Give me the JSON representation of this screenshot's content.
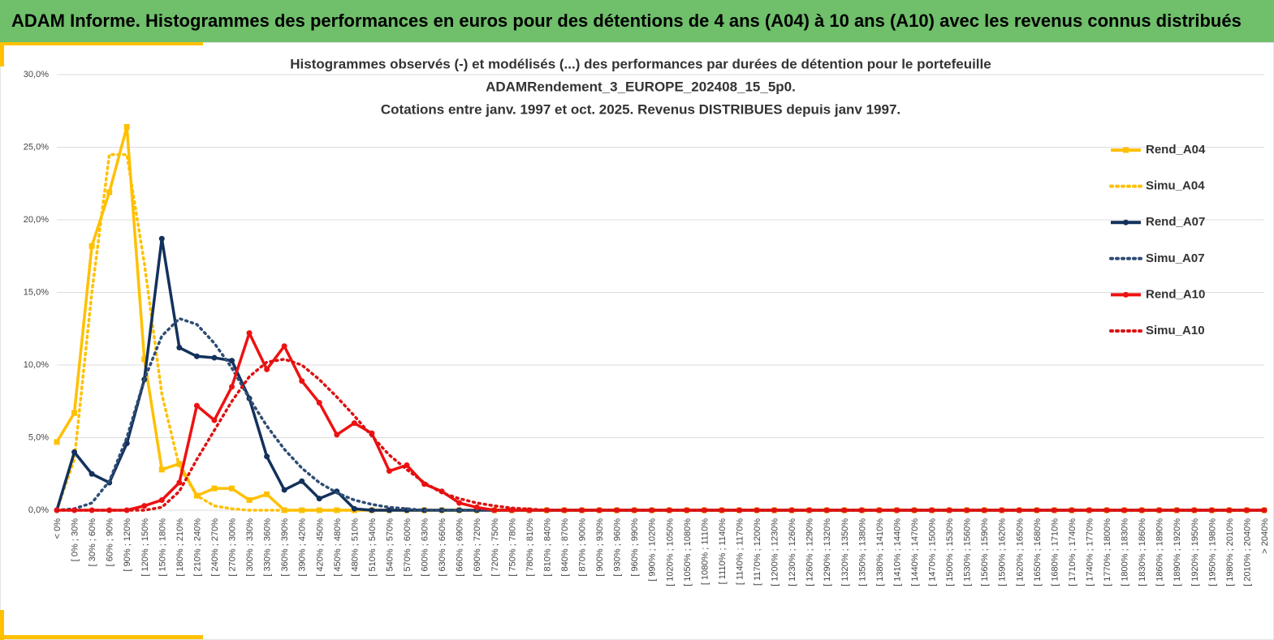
{
  "header": "ADAM Informe. Histogrammes des performances en euros pour des détentions de 4 ans (A04) à 10 ans (A10) avec les revenus connus distribués",
  "chart_data": {
    "type": "line",
    "title": [
      "Histogrammes observés (-) et modélisés (...) des performances par durées de détention pour le portefeuille",
      "ADAMRendement_3_EUROPE_202408_15_5p0.",
      "Cotations entre janv. 1997 et oct. 2025. Revenus DISTRIBUES depuis janv 1997."
    ],
    "categories": [
      "< 0%",
      "[ 0% ; 30%",
      "[ 30% ; 60%",
      "[ 60% ; 90%",
      "[ 90% ; 120%",
      "[ 120% ; 150%",
      "[ 150% ; 180%",
      "[ 180% ; 210%",
      "[ 210% ; 240%",
      "[ 240% ; 270%",
      "[ 270% ; 300%",
      "[ 300% ; 330%",
      "[ 330% ; 360%",
      "[ 360% ; 390%",
      "[ 390% ; 420%",
      "[ 420% ; 450%",
      "[ 450% ; 480%",
      "[ 480% ; 510%",
      "[ 510% ; 540%",
      "[ 540% ; 570%",
      "[ 570% ; 600%",
      "[ 600% ; 630%",
      "[ 630% ; 660%",
      "[ 660% ; 690%",
      "[ 690% ; 720%",
      "[ 720% ; 750%",
      "[ 750% ; 780%",
      "[ 780% ; 810%",
      "[ 810% ; 840%",
      "[ 840% ; 870%",
      "[ 870% ; 900%",
      "[ 900% ; 930%",
      "[ 930% ; 960%",
      "[ 960% ; 990%",
      "[ 990% ; 1020%",
      "[ 1020% ; 1050%",
      "[ 1050% ; 1080%",
      "[ 1080% ; 1110%",
      "[ 1110% ; 1140%",
      "[ 1140% ; 1170%",
      "[ 1170% ; 1200%",
      "[ 1200% ; 1230%",
      "[ 1230% ; 1260%",
      "[ 1260% ; 1290%",
      "[ 1290% ; 1320%",
      "[ 1320% ; 1350%",
      "[ 1350% ; 1380%",
      "[ 1380% ; 1410%",
      "[ 1410% ; 1440%",
      "[ 1440% ; 1470%",
      "[ 1470% ; 1500%",
      "[ 1500% ; 1530%",
      "[ 1530% ; 1560%",
      "[ 1560% ; 1590%",
      "[ 1590% ; 1620%",
      "[ 1620% ; 1650%",
      "[ 1650% ; 1680%",
      "[ 1680% ; 1710%",
      "[ 1710% ; 1740%",
      "[ 1740% ; 1770%",
      "[ 1770% ; 1800%",
      "[ 1800% ; 1830%",
      "[ 1830% ; 1860%",
      "[ 1860% ; 1890%",
      "[ 1890% ; 1920%",
      "[ 1920% ; 1950%",
      "[ 1950% ; 1980%",
      "[ 1980% ; 2010%",
      "[ 2010% ; 2040%",
      "> 2040%"
    ],
    "series": [
      {
        "name": "Rend_A04",
        "color": "#ffc000",
        "style": "solid",
        "marker": "square",
        "values": [
          4.7,
          6.7,
          18.2,
          21.9,
          26.4,
          10.4,
          2.8,
          3.2,
          1.0,
          1.5,
          1.5,
          0.7,
          1.1,
          0,
          0,
          0,
          0,
          0,
          0,
          0,
          0,
          0,
          0,
          0,
          0,
          0,
          0,
          0,
          0,
          0,
          0,
          0,
          0,
          0,
          0,
          0,
          0,
          0,
          0,
          0,
          0,
          0,
          0,
          0,
          0,
          0,
          0,
          0,
          0,
          0,
          0,
          0,
          0,
          0,
          0,
          0,
          0,
          0,
          0,
          0,
          0,
          0,
          0,
          0,
          0,
          0,
          0,
          0,
          0,
          0
        ]
      },
      {
        "name": "Simu_A04",
        "color": "#ffc000",
        "style": "dotted",
        "values": [
          0,
          3.5,
          15,
          24.5,
          24.5,
          17,
          8,
          3,
          1,
          0.3,
          0.1,
          0,
          0,
          0,
          0,
          0,
          0,
          0,
          0,
          0,
          0,
          0,
          0,
          0,
          0,
          0,
          0,
          0,
          0,
          0,
          0,
          0,
          0,
          0,
          0,
          0,
          0,
          0,
          0,
          0,
          0,
          0,
          0,
          0,
          0,
          0,
          0,
          0,
          0,
          0,
          0,
          0,
          0,
          0,
          0,
          0,
          0,
          0,
          0,
          0,
          0,
          0,
          0,
          0,
          0,
          0,
          0,
          0,
          0,
          0
        ]
      },
      {
        "name": "Rend_A07",
        "color": "#13315c",
        "style": "solid",
        "marker": "circle",
        "values": [
          0,
          4.0,
          2.5,
          1.9,
          4.6,
          9.0,
          18.7,
          11.2,
          10.6,
          10.5,
          10.3,
          7.7,
          3.7,
          1.4,
          2.0,
          0.8,
          1.3,
          0.1,
          0,
          0,
          0,
          0,
          0,
          0,
          0,
          0,
          0,
          0,
          0,
          0,
          0,
          0,
          0,
          0,
          0,
          0,
          0,
          0,
          0,
          0,
          0,
          0,
          0,
          0,
          0,
          0,
          0,
          0,
          0,
          0,
          0,
          0,
          0,
          0,
          0,
          0,
          0,
          0,
          0,
          0,
          0,
          0,
          0,
          0,
          0,
          0,
          0,
          0,
          0,
          0
        ]
      },
      {
        "name": "Simu_A07",
        "color": "#2e4d75",
        "style": "dotted",
        "values": [
          0,
          0.1,
          0.5,
          2,
          5,
          9,
          12,
          13.2,
          12.8,
          11.5,
          9.8,
          7.7,
          5.8,
          4.2,
          2.9,
          1.9,
          1.2,
          0.7,
          0.4,
          0.2,
          0.1,
          0,
          0,
          0,
          0,
          0,
          0,
          0,
          0,
          0,
          0,
          0,
          0,
          0,
          0,
          0,
          0,
          0,
          0,
          0,
          0,
          0,
          0,
          0,
          0,
          0,
          0,
          0,
          0,
          0,
          0,
          0,
          0,
          0,
          0,
          0,
          0,
          0,
          0,
          0,
          0,
          0,
          0,
          0,
          0,
          0,
          0,
          0,
          0,
          0
        ]
      },
      {
        "name": "Rend_A10",
        "color": "#ee1111",
        "style": "solid",
        "marker": "circle",
        "values": [
          0,
          0,
          0,
          0,
          0,
          0.3,
          0.7,
          1.9,
          7.2,
          6.2,
          8.5,
          12.2,
          9.7,
          11.3,
          8.9,
          7.4,
          5.2,
          6.0,
          5.3,
          2.7,
          3.1,
          1.8,
          1.3,
          0.5,
          0.2,
          0,
          0,
          0,
          0,
          0,
          0,
          0,
          0,
          0,
          0,
          0,
          0,
          0,
          0,
          0,
          0,
          0,
          0,
          0,
          0,
          0,
          0,
          0,
          0,
          0,
          0,
          0,
          0,
          0,
          0,
          0,
          0,
          0,
          0,
          0,
          0,
          0,
          0,
          0,
          0,
          0,
          0,
          0,
          0,
          0
        ]
      },
      {
        "name": "Simu_A10",
        "color": "#dd1111",
        "style": "dotted",
        "values": [
          0,
          0,
          0,
          0,
          0,
          0,
          0.2,
          1.3,
          3.5,
          5.5,
          7.5,
          9.2,
          10.2,
          10.4,
          10,
          9,
          7.8,
          6.5,
          5.1,
          3.8,
          2.8,
          1.9,
          1.2,
          0.8,
          0.5,
          0.3,
          0.15,
          0.08,
          0,
          0,
          0,
          0,
          0,
          0,
          0,
          0,
          0,
          0,
          0,
          0,
          0,
          0,
          0,
          0,
          0,
          0,
          0,
          0,
          0,
          0,
          0,
          0,
          0,
          0,
          0,
          0,
          0,
          0,
          0,
          0,
          0,
          0,
          0,
          0,
          0,
          0,
          0,
          0,
          0,
          0
        ]
      }
    ],
    "ylim": [
      0,
      30
    ],
    "yticks": [
      {
        "value": 0,
        "label": "0,0%"
      },
      {
        "value": 5,
        "label": "5,0%"
      },
      {
        "value": 10,
        "label": "10,0%"
      },
      {
        "value": 15,
        "label": "15,0%"
      },
      {
        "value": 20,
        "label": "20,0%"
      },
      {
        "value": 25,
        "label": "25,0%"
      },
      {
        "value": 30,
        "label": "30,0%"
      }
    ],
    "grid": true,
    "legend": "right"
  }
}
